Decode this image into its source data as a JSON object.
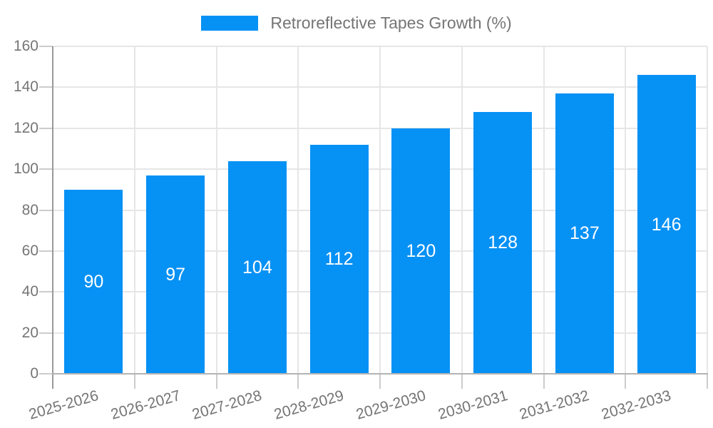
{
  "legend": {
    "label": "Retroreflective Tapes Growth (%)"
  },
  "chart_data": {
    "type": "bar",
    "title": "Retroreflective Tapes Growth (%)",
    "categories": [
      "2025-2026",
      "2026-2027",
      "2027-2028",
      "2028-2029",
      "2029-2030",
      "2030-2031",
      "2031-2032",
      "2032-2033"
    ],
    "values": [
      90,
      97,
      104,
      112,
      120,
      128,
      137,
      146
    ],
    "xlabel": "",
    "ylabel": "",
    "ylim": [
      0,
      160
    ],
    "ytick_step": 20,
    "ytick_labels": [
      "0",
      "20",
      "40",
      "60",
      "80",
      "100",
      "120",
      "140",
      "160"
    ],
    "grid": true,
    "legend_position": "top-center",
    "colors": {
      "bar": "#0691f5",
      "value_label": "#ffffff",
      "axis_text": "#757575",
      "gridline": "#e6e6e6",
      "y_axis_line": "#999999",
      "x_axis_line": "#b3b3b3",
      "tick": "#cccccc"
    }
  }
}
